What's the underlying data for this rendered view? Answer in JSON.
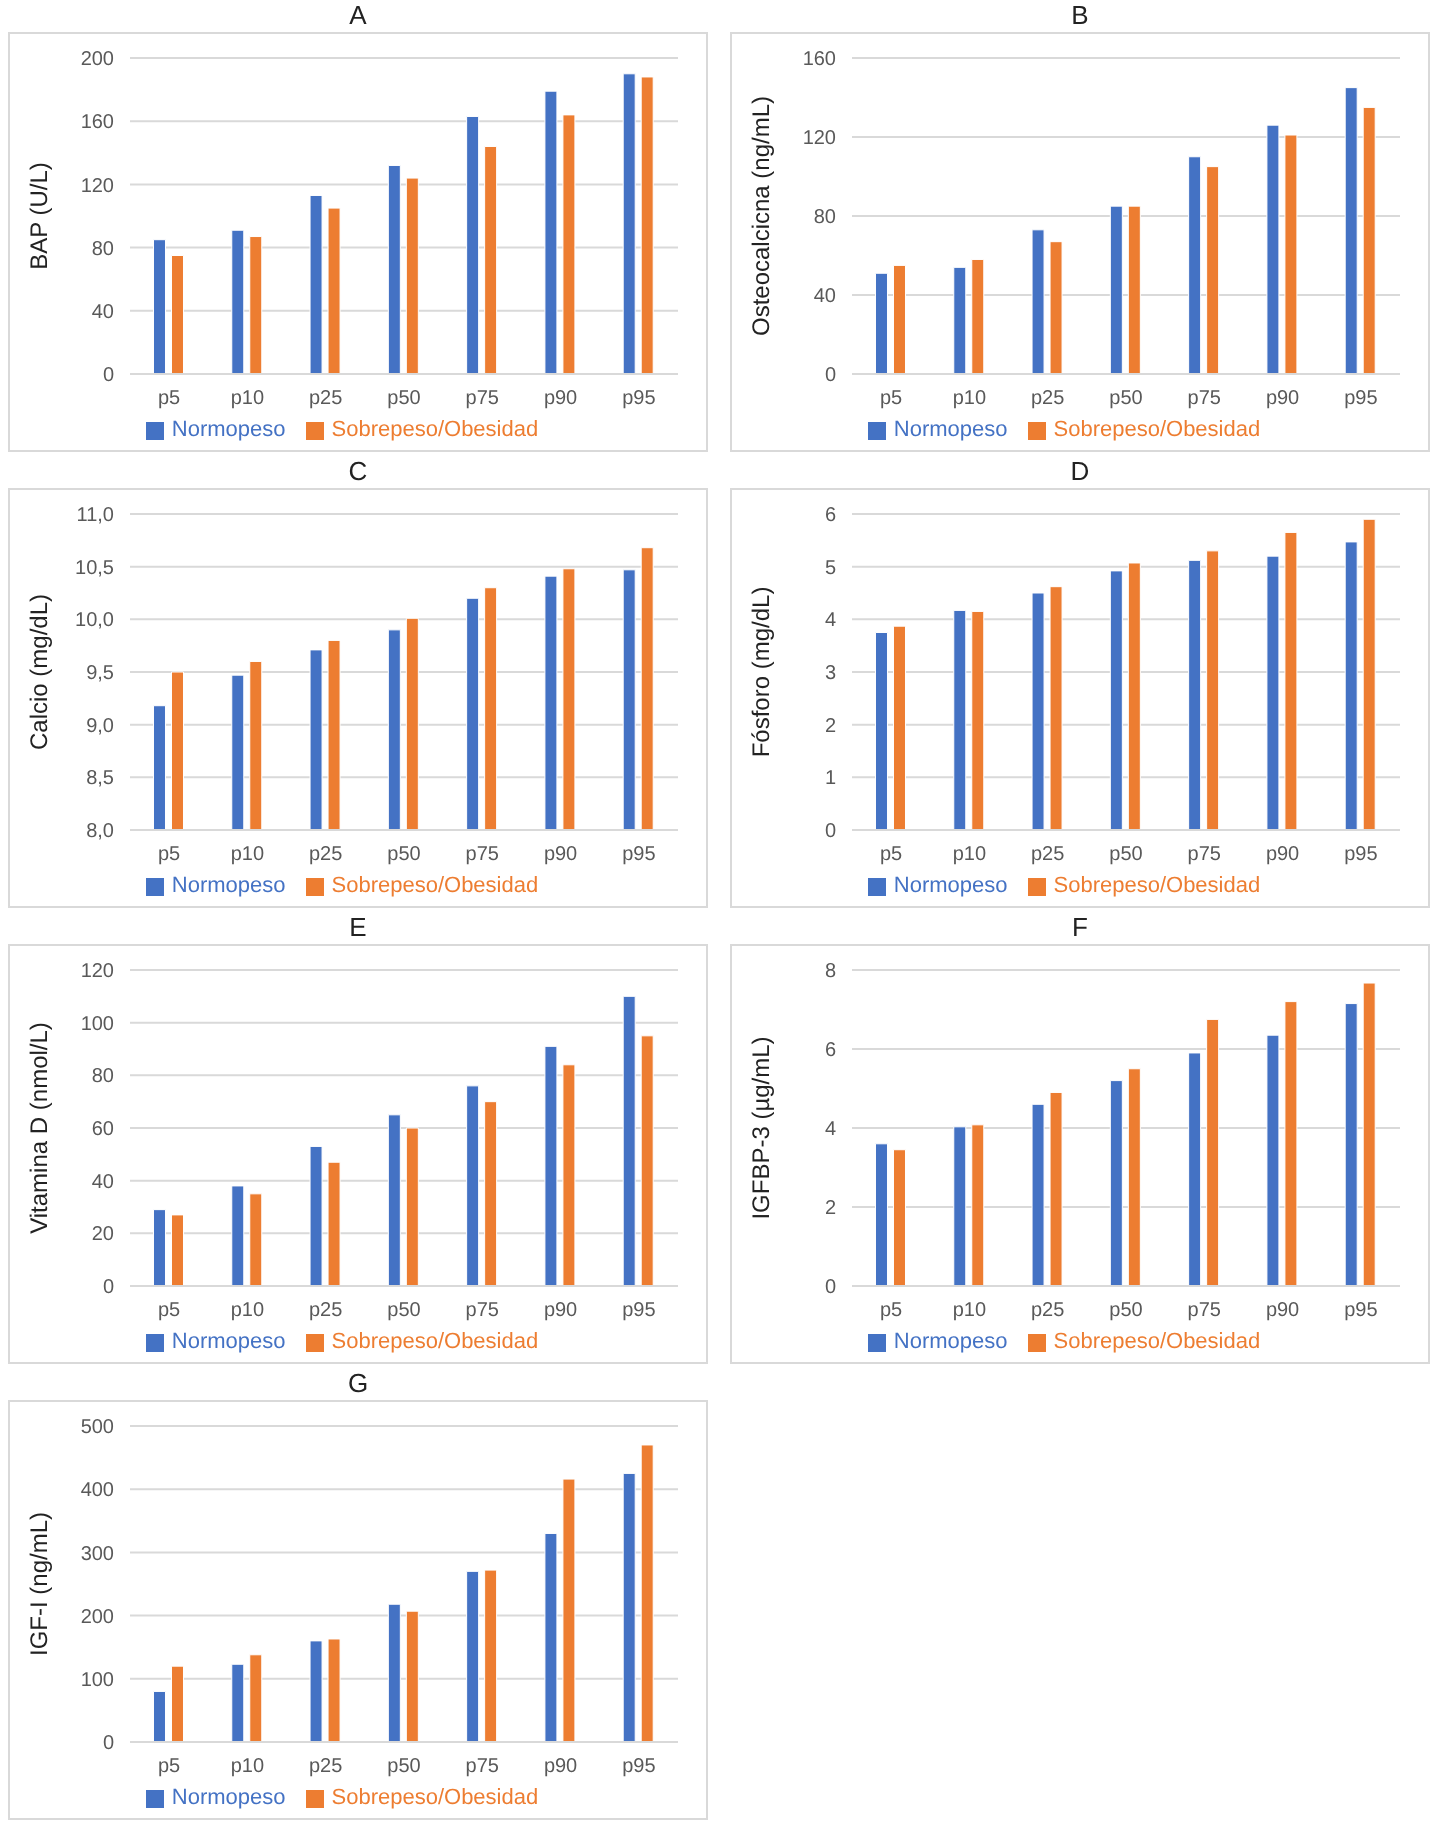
{
  "chart_data": [
    {
      "type": "bar",
      "title": "A",
      "ylabel": "BAP (U/L)",
      "categories": [
        "p5",
        "p10",
        "p25",
        "p50",
        "p75",
        "p90",
        "p95"
      ],
      "series": [
        {
          "name": "Normopeso",
          "color": "#4472c4",
          "values": [
            85,
            91,
            113,
            132,
            163,
            179,
            190
          ]
        },
        {
          "name": "Sobrepeso/Obesidad",
          "color": "#ed7d31",
          "values": [
            75,
            87,
            105,
            124,
            144,
            164,
            188
          ]
        }
      ],
      "ylim": [
        0,
        200
      ],
      "yticks": [
        0,
        40,
        80,
        120,
        160,
        200
      ],
      "grid": "y",
      "legend": "bottom"
    },
    {
      "type": "bar",
      "title": "B",
      "ylabel": "Osteocalcicna (ng/mL)",
      "categories": [
        "p5",
        "p10",
        "p25",
        "p50",
        "p75",
        "p90",
        "p95"
      ],
      "series": [
        {
          "name": "Normopeso",
          "color": "#4472c4",
          "values": [
            51,
            54,
            73,
            85,
            110,
            126,
            145
          ]
        },
        {
          "name": "Sobrepeso/Obesidad",
          "color": "#ed7d31",
          "values": [
            55,
            58,
            67,
            85,
            105,
            121,
            135
          ]
        }
      ],
      "ylim": [
        0,
        160
      ],
      "yticks": [
        0,
        40,
        80,
        120,
        160
      ],
      "grid": "y",
      "legend": "bottom"
    },
    {
      "type": "bar",
      "title": "C",
      "ylabel": "Calcio (mg/dL)",
      "categories": [
        "p5",
        "p10",
        "p25",
        "p50",
        "p75",
        "p90",
        "p95"
      ],
      "series": [
        {
          "name": "Normopeso",
          "color": "#4472c4",
          "values": [
            9.18,
            9.47,
            9.71,
            9.9,
            10.2,
            10.41,
            10.47
          ]
        },
        {
          "name": "Sobrepeso/Obesidad",
          "color": "#ed7d31",
          "values": [
            9.5,
            9.6,
            9.8,
            10.01,
            10.3,
            10.48,
            10.68
          ]
        }
      ],
      "ylim": [
        8,
        11
      ],
      "yticks": [
        {
          "value": 8,
          "label": "8,0"
        },
        {
          "value": 8.5,
          "label": "8,5"
        },
        {
          "value": 9,
          "label": "9,0"
        },
        {
          "value": 9.5,
          "label": "9,5"
        },
        {
          "value": 10,
          "label": "10,0"
        },
        {
          "value": 10.5,
          "label": "10,5"
        },
        {
          "value": 11,
          "label": "11,0"
        }
      ],
      "grid": "y",
      "legend": "bottom"
    },
    {
      "type": "bar",
      "title": "D",
      "ylabel": "Fósforo (mg/dL)",
      "categories": [
        "p5",
        "p10",
        "p25",
        "p50",
        "p75",
        "p90",
        "p95"
      ],
      "series": [
        {
          "name": "Normopeso",
          "color": "#4472c4",
          "values": [
            3.75,
            4.17,
            4.5,
            4.92,
            5.12,
            5.2,
            5.47
          ]
        },
        {
          "name": "Sobrepeso/Obesidad",
          "color": "#ed7d31",
          "values": [
            3.87,
            4.15,
            4.62,
            5.07,
            5.3,
            5.65,
            5.9
          ]
        }
      ],
      "ylim": [
        0,
        6
      ],
      "yticks": [
        0,
        1,
        2,
        3,
        4,
        5,
        6
      ],
      "grid": "y",
      "legend": "bottom"
    },
    {
      "type": "bar",
      "title": "E",
      "ylabel": "Vitamina D (nmol/L)",
      "categories": [
        "p5",
        "p10",
        "p25",
        "p50",
        "p75",
        "p90",
        "p95"
      ],
      "series": [
        {
          "name": "Normopeso",
          "color": "#4472c4",
          "values": [
            29,
            38,
            53,
            65,
            76,
            91,
            110
          ]
        },
        {
          "name": "Sobrepeso/Obesidad",
          "color": "#ed7d31",
          "values": [
            27,
            35,
            47,
            60,
            70,
            84,
            95
          ]
        }
      ],
      "ylim": [
        0,
        120
      ],
      "yticks": [
        0,
        20,
        40,
        60,
        80,
        100,
        120
      ],
      "grid": "y",
      "legend": "bottom"
    },
    {
      "type": "bar",
      "title": "F",
      "ylabel": "IGFBP-3 (µg/mL)",
      "categories": [
        "p5",
        "p10",
        "p25",
        "p50",
        "p75",
        "p90",
        "p95"
      ],
      "series": [
        {
          "name": "Normopeso",
          "color": "#4472c4",
          "values": [
            3.6,
            4.03,
            4.6,
            5.2,
            5.9,
            6.35,
            7.15
          ]
        },
        {
          "name": "Sobrepeso/Obesidad",
          "color": "#ed7d31",
          "values": [
            3.45,
            4.08,
            4.9,
            5.5,
            6.75,
            7.2,
            7.67
          ]
        }
      ],
      "ylim": [
        0,
        8
      ],
      "yticks": [
        0,
        2,
        4,
        6,
        8
      ],
      "grid": "y",
      "legend": "bottom"
    },
    {
      "type": "bar",
      "title": "G",
      "ylabel": "IGF-I (ng/mL)",
      "categories": [
        "p5",
        "p10",
        "p25",
        "p50",
        "p75",
        "p90",
        "p95"
      ],
      "series": [
        {
          "name": "Normopeso",
          "color": "#4472c4",
          "values": [
            80,
            123,
            160,
            218,
            270,
            330,
            425
          ]
        },
        {
          "name": "Sobrepeso/Obesidad",
          "color": "#ed7d31",
          "values": [
            120,
            138,
            163,
            207,
            272,
            416,
            470
          ]
        }
      ],
      "ylim": [
        0,
        500
      ],
      "yticks": [
        0,
        100,
        200,
        300,
        400,
        500
      ],
      "grid": "y",
      "legend": "bottom"
    }
  ]
}
